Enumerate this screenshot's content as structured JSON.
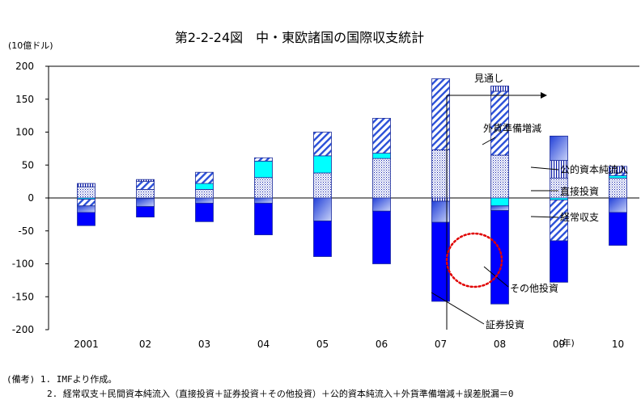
{
  "chart_data": {
    "type": "bar",
    "stacked": true,
    "title": "第2-2-24図　中・東欧諸国の国際収支統計",
    "ylabel": "(10億ドル)",
    "xlabel": "(年)",
    "ylim": [
      -200,
      200
    ],
    "yticks": [
      200,
      150,
      100,
      50,
      0,
      -50,
      -100,
      -150,
      -200
    ],
    "categories": [
      "2001",
      "02",
      "03",
      "04",
      "05",
      "06",
      "07",
      "08",
      "09",
      "10"
    ],
    "forecast_label": "見通し",
    "forecast_from_index": 8,
    "series": [
      {
        "name": "直接投資",
        "pattern": "dots",
        "color": "#0a1aa8",
        "values": [
          17,
          13,
          13,
          31,
          38,
          60,
          73,
          65,
          30,
          30
        ]
      },
      {
        "name": "証券投資",
        "pattern": "solid",
        "color": "#00ffff",
        "values": [
          -2,
          -1,
          9,
          25,
          26,
          8,
          0,
          -12,
          -3,
          4
        ]
      },
      {
        "name": "その他投資",
        "pattern": "diag",
        "color": "#2a4fd8",
        "values": [
          -10,
          12,
          17,
          5,
          36,
          53,
          108,
          97,
          -62,
          4
        ]
      },
      {
        "name": "公的資本純流入",
        "pattern": "vert",
        "color": "#0a1aa8",
        "values": [
          5,
          3,
          0,
          0,
          0,
          0,
          -5,
          8,
          27,
          10
        ]
      },
      {
        "name": "外貨準備増減",
        "pattern": "gradient",
        "color": "#3050e0",
        "values": [
          -10,
          -12,
          -8,
          -8,
          -35,
          -20,
          -32,
          -7,
          37,
          -22
        ]
      },
      {
        "name": "経常収支",
        "pattern": "solid",
        "color": "#0000ff",
        "values": [
          -20,
          -16,
          -28,
          -48,
          -54,
          -80,
          -120,
          -142,
          -63,
          -50
        ]
      }
    ],
    "annotations": [
      "外貨準備増減",
      "公的資本純流入",
      "直接投資",
      "経常収支",
      "その他投資",
      "証券投資"
    ]
  },
  "notes": {
    "line1": "(備考) 1. IMFより作成。",
    "line2": "2. 経常収支＋民間資本純流入（直接投資＋証券投資＋その他投資）＋公的資本純流入＋外貨準備増減＋誤差脱漏＝0"
  }
}
